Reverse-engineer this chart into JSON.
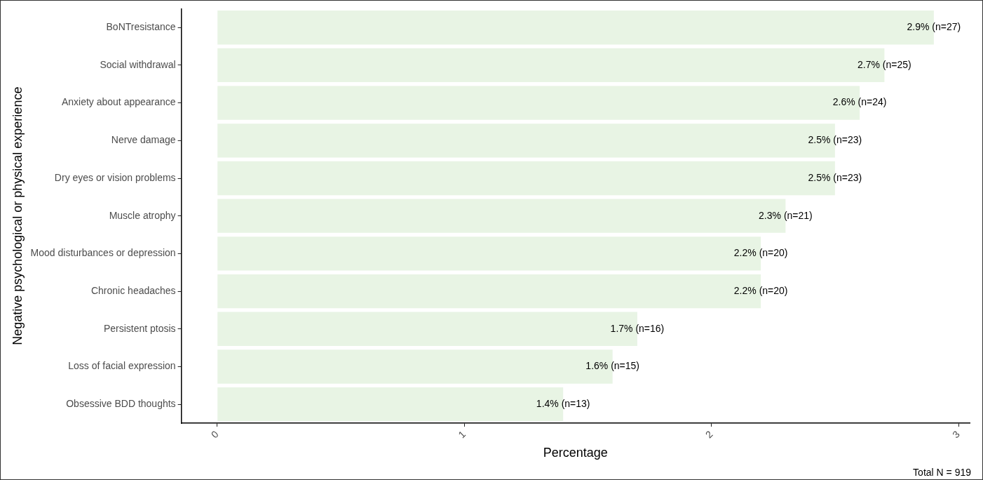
{
  "chart_data": {
    "type": "bar",
    "orientation": "horizontal",
    "xlabel": "Percentage",
    "ylabel": "Negative psychological or physical experience",
    "categories": [
      "BoNTresistance",
      "Social withdrawal",
      "Anxiety about appearance",
      "Nerve damage",
      "Dry eyes or vision problems",
      "Muscle atrophy",
      "Mood disturbances or depression",
      "Chronic headaches",
      "Persistent ptosis",
      "Loss of facial expression",
      "Obsessive BDD thoughts"
    ],
    "values": [
      2.9,
      2.7,
      2.6,
      2.5,
      2.5,
      2.3,
      2.2,
      2.2,
      1.7,
      1.6,
      1.4
    ],
    "value_labels": [
      "2.9% (n=27)",
      "2.7% (n=25)",
      "2.6% (n=24)",
      "2.5% (n=23)",
      "2.5% (n=23)",
      "2.3% (n=21)",
      "2.2% (n=20)",
      "2.2% (n=20)",
      "1.7% (n=16)",
      "1.6% (n=15)",
      "1.4% (n=13)"
    ],
    "color": "#e8f4e4",
    "xlim": [
      -0.145,
      3.045
    ],
    "xticks": [
      0,
      1,
      2,
      3
    ],
    "grid": false,
    "legend": false,
    "annotations": [
      "Total N = 919"
    ]
  }
}
